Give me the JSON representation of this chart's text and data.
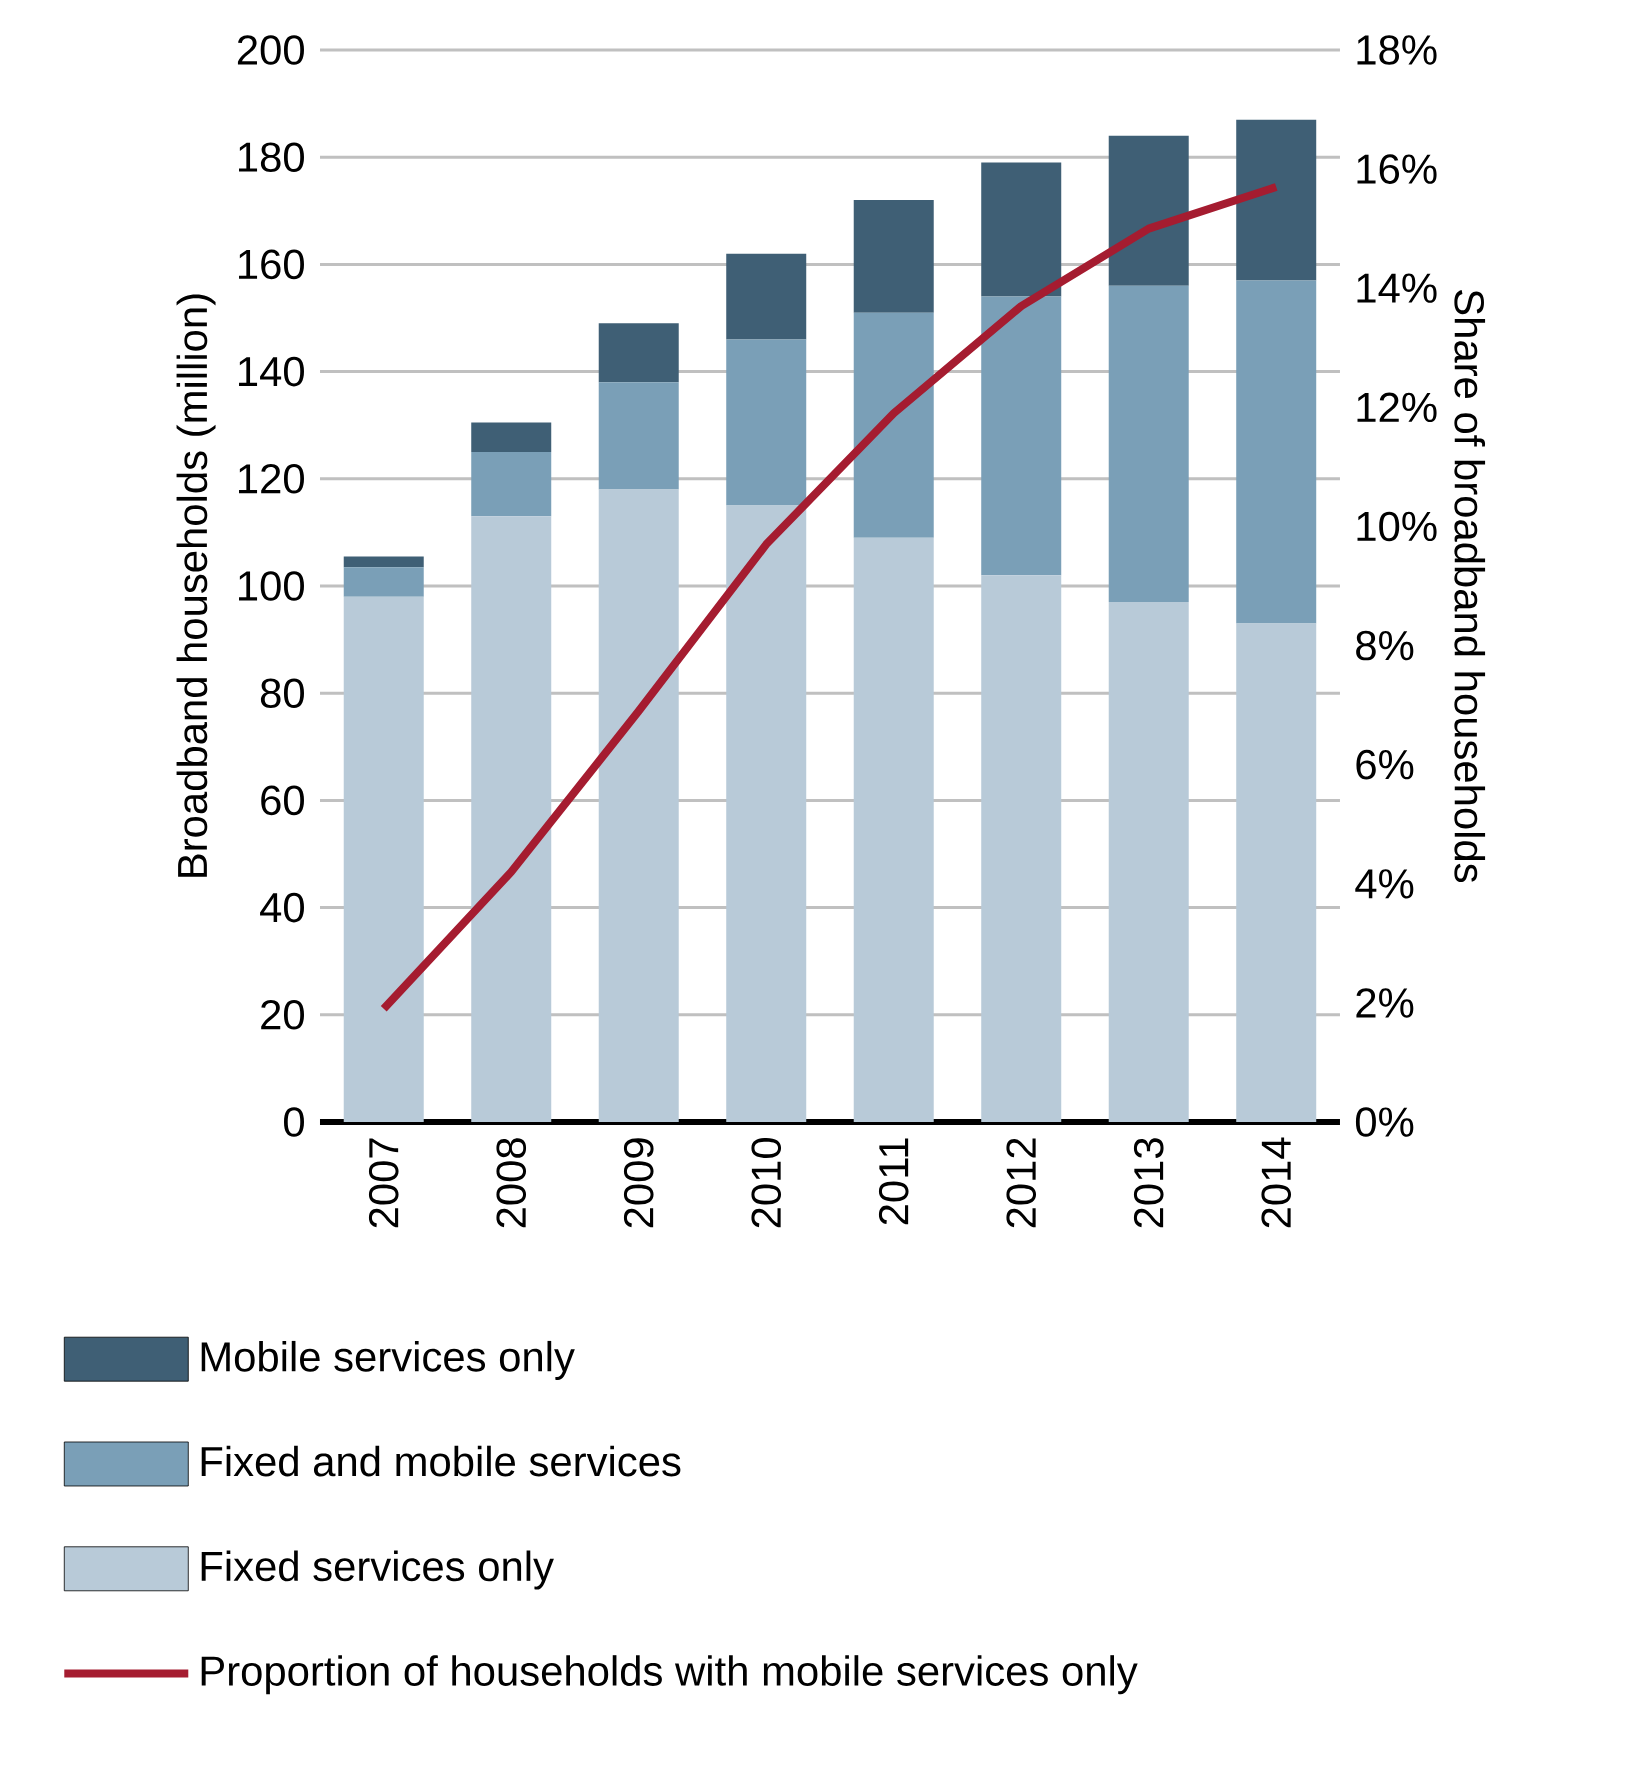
{
  "chart_data": {
    "type": "bar",
    "stacked": true,
    "categories": [
      "2007",
      "2008",
      "2009",
      "2010",
      "2011",
      "2012",
      "2013",
      "2014"
    ],
    "series": [
      {
        "name": "Fixed services only",
        "color": "#b8cad8",
        "values": [
          98,
          113,
          118,
          115,
          109,
          102,
          97,
          93
        ]
      },
      {
        "name": "Fixed and mobile services",
        "color": "#7a9fb7",
        "values": [
          5.5,
          12,
          20,
          31,
          42,
          52,
          59,
          64
        ]
      },
      {
        "name": "Mobile services only",
        "color": "#3f5f75",
        "values": [
          2,
          5.5,
          11,
          16,
          21,
          25,
          28,
          30
        ]
      },
      {
        "name": "Proportion of households with mobile services only",
        "type": "line",
        "axis": "y2",
        "color": "#a51c30",
        "values": [
          1.9,
          4.2,
          6.9,
          9.7,
          11.9,
          13.7,
          15.0,
          15.7
        ]
      }
    ],
    "ylabel": "Broadband households (million)",
    "y2label": "Share of broadband households",
    "ylim": [
      0,
      200
    ],
    "yticks": [
      0,
      20,
      40,
      60,
      80,
      100,
      120,
      140,
      160,
      180,
      200
    ],
    "y2lim": [
      0,
      18
    ],
    "y2ticks": [
      {
        "value": 0,
        "label": "0%"
      },
      {
        "value": 2,
        "label": "2%"
      },
      {
        "value": 4,
        "label": "4%"
      },
      {
        "value": 6,
        "label": "6%"
      },
      {
        "value": 8,
        "label": "8%"
      },
      {
        "value": 10,
        "label": "10%"
      },
      {
        "value": 12,
        "label": "12%"
      },
      {
        "value": 14,
        "label": "14%"
      },
      {
        "value": 16,
        "label": "16%"
      },
      {
        "value": 18,
        "label": "18%"
      }
    ],
    "grid": "y",
    "legend": "bottom"
  }
}
